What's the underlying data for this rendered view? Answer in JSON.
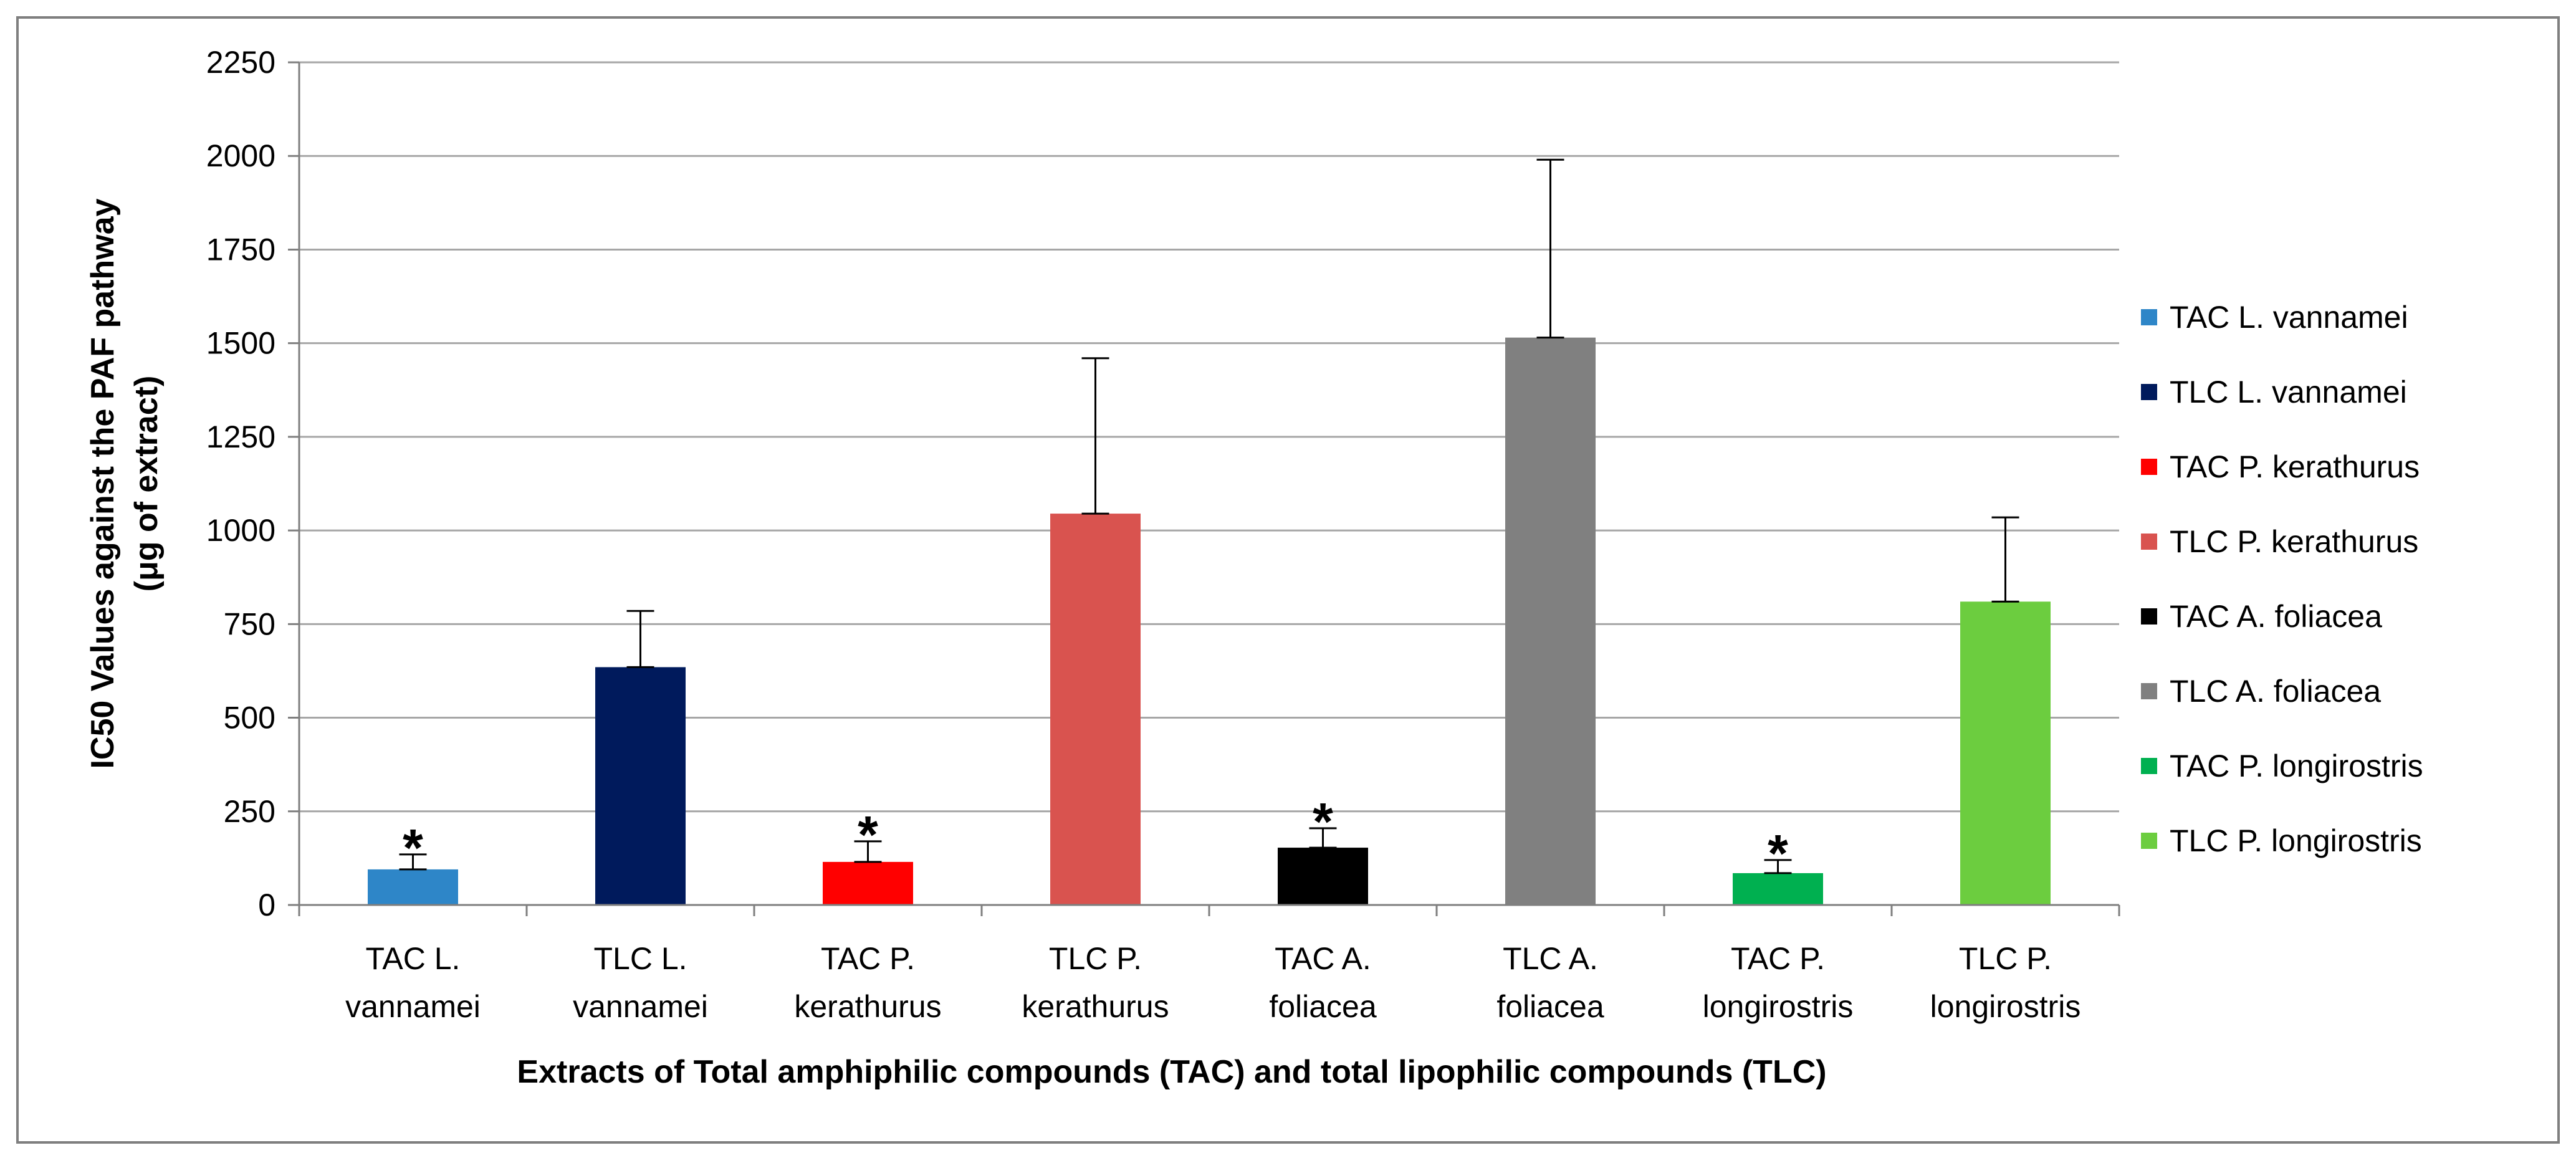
{
  "chart_data": {
    "type": "bar",
    "title": "",
    "xlabel": "Extracts of Total amphiphilic compounds (TAC) and total lipophilic compounds (TLC)",
    "ylabel_lines": [
      "IC50 Values against the PAF pathway",
      "(μg of extract)"
    ],
    "ylim": [
      0,
      2250
    ],
    "yticks": [
      0,
      250,
      500,
      750,
      1000,
      1250,
      1500,
      1750,
      2000,
      2250
    ],
    "grid": true,
    "legend_position": "right",
    "categories": [
      {
        "line1": "TAC L.",
        "line2": "vannamei"
      },
      {
        "line1": "TLC L.",
        "line2": "vannamei"
      },
      {
        "line1": "TAC P.",
        "line2": "kerathurus"
      },
      {
        "line1": "TLC P.",
        "line2": "kerathurus"
      },
      {
        "line1": "TAC A.",
        "line2": "foliacea"
      },
      {
        "line1": "TLC A.",
        "line2": "foliacea"
      },
      {
        "line1": "TAC P.",
        "line2": "longirostris"
      },
      {
        "line1": "TLC P.",
        "line2": "longirostris"
      }
    ],
    "series": [
      {
        "name": "TAC L. vannamei",
        "value": 95,
        "error": 40,
        "color": "#2e86c8",
        "significant": true
      },
      {
        "name": "TLC L. vannamei",
        "value": 635,
        "error": 150,
        "color": "#001a5c",
        "significant": false
      },
      {
        "name": "TAC P. kerathurus",
        "value": 115,
        "error": 55,
        "color": "#ff0000",
        "significant": true
      },
      {
        "name": "TLC P. kerathurus",
        "value": 1045,
        "error": 415,
        "color": "#d9534f",
        "significant": false
      },
      {
        "name": "TAC A. foliacea",
        "value": 153,
        "error": 52,
        "color": "#000000",
        "significant": true
      },
      {
        "name": "TLC A. foliacea",
        "value": 1515,
        "error": 475,
        "color": "#808080",
        "significant": false
      },
      {
        "name": "TAC P. longirostris",
        "value": 85,
        "error": 35,
        "color": "#00b050",
        "significant": true
      },
      {
        "name": "TLC P. longirostris",
        "value": 810,
        "error": 225,
        "color": "#6ccd3f",
        "significant": false
      }
    ],
    "significance_marker": "*"
  }
}
